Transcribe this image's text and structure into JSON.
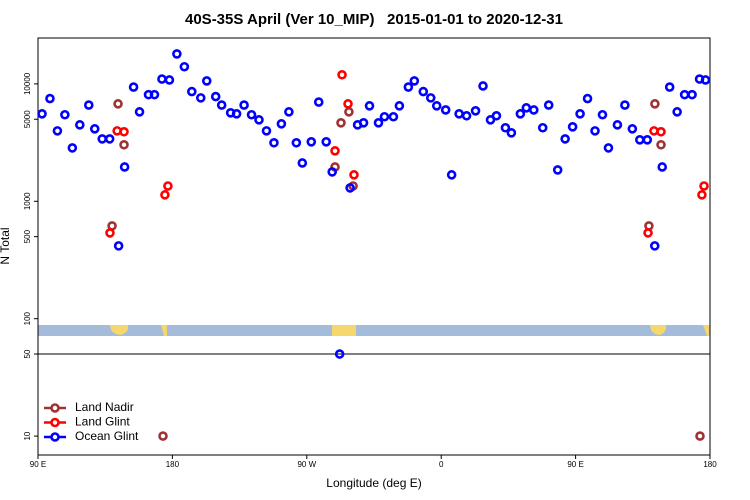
{
  "chart_data": {
    "type": "scatter",
    "title": "40S-35S April (Ver 10_MIP)   2015-01-01 to 2020-12-31",
    "x_label": "Longitude (deg E)",
    "y_label": "N Total",
    "xlim": [
      90,
      540
    ],
    "xticks": [
      {
        "value": 90,
        "label": "90 E"
      },
      {
        "value": 180,
        "label": "180"
      },
      {
        "value": 270,
        "label": "90 W"
      },
      {
        "value": 360,
        "label": "0"
      },
      {
        "value": 450,
        "label": "90 E"
      },
      {
        "value": 540,
        "label": "180"
      }
    ],
    "ylim": [
      6.9,
      24600
    ],
    "y_scale": "log",
    "yticks": [
      10,
      50,
      100,
      500,
      1000,
      5000,
      10000
    ],
    "reference_line": 50,
    "legend": "bottom-left",
    "series": [
      {
        "name": "Land Nadir",
        "color": "#a03232",
        "x": [
          139.6,
          143.6,
          147.6,
          173.7,
          292.9,
          298.2,
          288.9,
          301.0,
          499.1,
          503.1,
          507.2,
          533.3
        ],
        "values": [
          617,
          6760,
          3030,
          10,
          4660,
          5780,
          1960,
          1350,
          617,
          6760,
          3030,
          10
        ]
      },
      {
        "name": "Land Glint",
        "color": "#ff0000",
        "x": [
          138.2,
          143.0,
          147.6,
          175.0,
          177.0,
          293.6,
          297.6,
          288.9,
          301.6,
          498.5,
          502.5,
          507.2,
          534.6,
          536.0
        ],
        "values": [
          538,
          3980,
          3910,
          1135,
          1350,
          11960,
          6760,
          2690,
          1680,
          538,
          3980,
          3910,
          1135,
          1350
        ]
      },
      {
        "name": "Ocean Glint",
        "color": "#0000ff",
        "x": [
          92.7,
          98,
          103,
          108,
          113,
          118,
          124,
          128,
          133,
          138,
          144,
          148,
          154,
          158,
          164,
          168,
          173,
          178,
          183,
          188,
          193,
          199,
          203,
          209,
          213,
          219,
          223,
          228,
          233,
          238,
          243,
          248,
          253,
          258,
          263,
          267,
          273,
          278,
          283,
          287,
          292,
          299,
          304,
          308,
          312,
          318,
          322,
          328,
          332,
          338,
          342,
          348,
          353,
          357,
          363,
          367,
          372,
          377,
          383,
          388,
          393,
          397,
          403,
          407,
          413,
          417,
          422,
          428,
          432,
          438,
          443,
          448,
          453,
          458,
          463,
          468,
          472,
          478,
          483,
          488,
          493,
          498,
          503,
          508,
          513,
          518,
          523,
          528,
          533,
          537
        ],
        "values": [
          5560,
          7500,
          3980,
          5460,
          2850,
          4480,
          6600,
          4140,
          3400,
          3400,
          417,
          1960,
          9400,
          5780,
          8100,
          8100,
          11000,
          10800,
          18000,
          14000,
          8600,
          7600,
          10600,
          7800,
          6600,
          5670,
          5560,
          6600,
          5460,
          4940,
          3980,
          3150,
          4570,
          5780,
          3150,
          2120,
          3210,
          7000,
          3210,
          1780,
          50,
          1300,
          4480,
          4660,
          6500,
          4660,
          5250,
          5250,
          6500,
          9400,
          10600,
          8600,
          7600,
          6500,
          6000,
          1680,
          5560,
          5350,
          5900,
          9600,
          4940,
          5350,
          4230,
          3830,
          5560,
          6250,
          6000,
          4230,
          6600,
          1850,
          3400,
          4310,
          5560,
          7500,
          3980,
          5460,
          2850,
          4480,
          6600,
          4140,
          3340,
          3340,
          417,
          1960,
          9400,
          5780,
          8100,
          8100,
          11000,
          10800
        ]
      }
    ]
  }
}
